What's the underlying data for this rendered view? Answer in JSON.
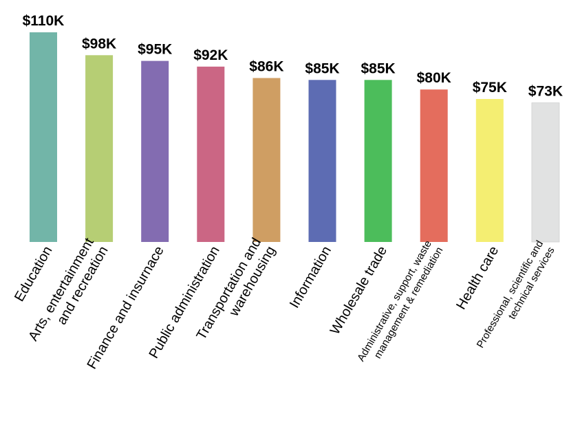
{
  "chart_data": {
    "type": "bar",
    "title": "",
    "xlabel": "",
    "ylabel": "",
    "ylim": [
      0,
      110
    ],
    "grid": false,
    "categories": [
      [
        "Education"
      ],
      [
        "Arts, entertainment",
        "and recreation"
      ],
      [
        "Finance and insurnace"
      ],
      [
        "Public administration"
      ],
      [
        "Transportation and",
        "warehousing"
      ],
      [
        "Information"
      ],
      [
        "Wholesale trade"
      ],
      [
        "Administrative, support, waste",
        "management & remediation"
      ],
      [
        "Health care"
      ],
      [
        "Professional, scientific and",
        "technical services"
      ]
    ],
    "values": [
      110,
      98,
      95,
      92,
      86,
      85,
      85,
      80,
      75,
      73
    ],
    "value_labels": [
      "$110K",
      "$98K",
      "$95K",
      "$92K",
      "$86K",
      "$85K",
      "$85K",
      "$80K",
      "$75K",
      "$73K"
    ],
    "colors": [
      "#72b5a8",
      "#b6ce74",
      "#836cb1",
      "#cb6684",
      "#cf9e63",
      "#5d6cb3",
      "#4cbd5b",
      "#e46d5d",
      "#f4ee72",
      "#e1e2e2"
    ]
  }
}
